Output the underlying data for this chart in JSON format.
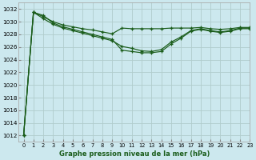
{
  "background_color": "#cce8ee",
  "grid_color": "#b0cccc",
  "line_color": "#1a5c1a",
  "xlabel": "Graphe pression niveau de la mer (hPa)",
  "ylim": [
    1011,
    1033
  ],
  "xlim": [
    -0.5,
    23
  ],
  "yticks": [
    1012,
    1014,
    1016,
    1018,
    1020,
    1022,
    1024,
    1026,
    1028,
    1030,
    1032
  ],
  "xticks": [
    0,
    1,
    2,
    3,
    4,
    5,
    6,
    7,
    8,
    9,
    10,
    11,
    12,
    13,
    14,
    15,
    16,
    17,
    18,
    19,
    20,
    21,
    22,
    23
  ],
  "series1": [
    1012,
    1031.5,
    1031.0,
    1029.8,
    1029.2,
    1028.8,
    1028.4,
    1028.0,
    1027.6,
    1027.2,
    1025.5,
    1025.3,
    1025.1,
    1025.1,
    1025.3,
    1026.5,
    1027.4,
    1028.5,
    1028.8,
    1028.5,
    1028.3,
    1028.5,
    1028.9,
    1028.9
  ],
  "series2": [
    1012,
    1031.5,
    1030.5,
    1029.6,
    1029.0,
    1028.6,
    1028.2,
    1027.8,
    1027.4,
    1027.0,
    1026.1,
    1025.8,
    1025.4,
    1025.3,
    1025.6,
    1026.8,
    1027.6,
    1028.6,
    1028.9,
    1028.6,
    1028.4,
    1028.6,
    1029.0,
    1029.0
  ],
  "series3": [
    1012,
    1031.5,
    1030.8,
    1030.0,
    1029.5,
    1029.2,
    1028.9,
    1028.7,
    1028.4,
    1028.1,
    1029.0,
    1028.9,
    1028.9,
    1028.9,
    1028.9,
    1029.0,
    1029.0,
    1029.0,
    1029.1,
    1028.9,
    1028.8,
    1028.9,
    1029.1,
    1029.1
  ]
}
